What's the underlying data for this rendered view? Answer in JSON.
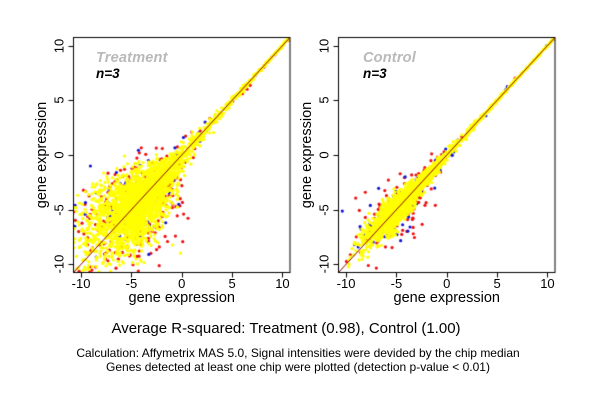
{
  "figure": {
    "background": "#ffffff",
    "axis_color": "#000000"
  },
  "chart_data": [
    {
      "panel": "left",
      "type": "scatter",
      "title": "Treatment",
      "title_color": "#b9b9b9",
      "annotation": "n=3",
      "xlabel": "gene expression",
      "ylabel": "gene expression",
      "xticks": [
        -10,
        -5,
        0,
        5,
        10
      ],
      "yticks": [
        -10,
        -5,
        0,
        5,
        10
      ],
      "xlim": [
        -10.75,
        10.75
      ],
      "ylim": [
        -10.75,
        10.75
      ],
      "grid": false,
      "legend": "none",
      "r_squared": 0.98,
      "identity_line": {
        "show": true,
        "slope": 1,
        "intercept": 0,
        "color": "#8b0000"
      },
      "series": [
        {
          "name": "flagged-red",
          "color": "#ee1111",
          "count": 380,
          "seed": 101,
          "center": -4.6,
          "spread": 2.0,
          "tail_frac": 0.13,
          "tail_lo": -2.0,
          "tail_hi": 10.75,
          "tail_pow": 1.6,
          "noise0": 2.1,
          "noise_decay": 4.2,
          "noise_min": 0.05
        },
        {
          "name": "flagged-blue",
          "color": "#1414d2",
          "count": 75,
          "seed": 102,
          "center": -4.4,
          "spread": 1.9,
          "tail_frac": 0.15,
          "tail_lo": -2.0,
          "tail_hi": 10.75,
          "tail_pow": 1.6,
          "noise0": 1.7,
          "noise_decay": 4.1,
          "noise_min": 0.05
        },
        {
          "name": "detected-yellow",
          "color": "#ffff00",
          "count": 2800,
          "seed": 103,
          "center": -4.5,
          "spread": 1.7,
          "tail_frac": 0.17,
          "tail_lo": -2.0,
          "tail_hi": 10.75,
          "tail_pow": 1.7,
          "noise0": 1.35,
          "noise_decay": 4.0,
          "noise_min": 0.04
        }
      ]
    },
    {
      "panel": "right",
      "type": "scatter",
      "title": "Control",
      "title_color": "#b9b9b9",
      "annotation": "n=3",
      "xlabel": "gene expression",
      "ylabel": "gene expression",
      "xticks": [
        -10,
        -5,
        0,
        5,
        10
      ],
      "yticks": [
        -10,
        -5,
        0,
        5,
        10
      ],
      "xlim": [
        -10.75,
        10.75
      ],
      "ylim": [
        -10.75,
        10.75
      ],
      "grid": false,
      "legend": "none",
      "r_squared": 1.0,
      "identity_line": {
        "show": true,
        "slope": 1,
        "intercept": 0,
        "color": "#8b0000"
      },
      "series": [
        {
          "name": "flagged-red",
          "color": "#ee1111",
          "count": 170,
          "seed": 201,
          "center": -4.4,
          "spread": 1.9,
          "tail_frac": 0.14,
          "tail_lo": -1.5,
          "tail_hi": 10.75,
          "tail_pow": 1.7,
          "noise0": 1.0,
          "noise_decay": 4.5,
          "noise_min": 0.05
        },
        {
          "name": "flagged-blue",
          "color": "#1414d2",
          "count": 95,
          "seed": 202,
          "center": -4.3,
          "spread": 1.9,
          "tail_frac": 0.15,
          "tail_lo": -1.5,
          "tail_hi": 10.75,
          "tail_pow": 1.7,
          "noise0": 0.85,
          "noise_decay": 4.5,
          "noise_min": 0.05
        },
        {
          "name": "detected-yellow",
          "color": "#ffff00",
          "count": 2300,
          "seed": 203,
          "center": -4.3,
          "spread": 1.75,
          "tail_frac": 0.18,
          "tail_lo": -1.5,
          "tail_hi": 10.75,
          "tail_pow": 1.6,
          "noise0": 0.45,
          "noise_decay": 4.5,
          "noise_min": 0.03
        }
      ]
    }
  ],
  "caption": {
    "title": "Average R-squared: Treatment (0.98), Control (1.00)",
    "line1": "Calculation: Affymetrix MAS 5.0, Signal intensities were devided by the chip median",
    "line2": "Genes detected at least one chip were plotted (detection p-value < 0.01)"
  }
}
